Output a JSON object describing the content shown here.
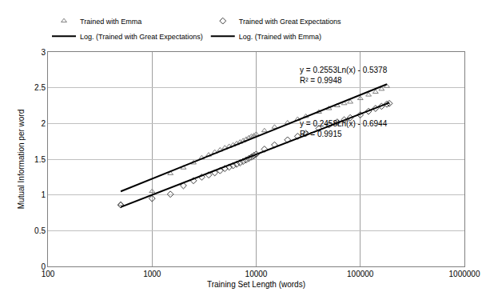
{
  "chart_data": {
    "type": "scatter",
    "log": "x",
    "grid": true,
    "legend": "top",
    "x_label": "Training Set Length (words)",
    "y_label": "Mutual Information per word",
    "xlim": [
      100,
      1000000
    ],
    "xticks": [
      100,
      1000,
      10000,
      100000,
      1000000
    ],
    "ylim": [
      0,
      3
    ],
    "yticks": [
      0,
      0.5,
      1,
      1.5,
      2,
      2.5,
      3
    ],
    "series": [
      {
        "name": "Trained with Emma",
        "type": "scatter",
        "marker": "triangle",
        "color": "#808080",
        "x": [
          500,
          1000,
          1500,
          2000,
          2500,
          3000,
          3500,
          4000,
          4500,
          5000,
          5500,
          6000,
          6500,
          7000,
          7500,
          8000,
          8500,
          9000,
          9500,
          10000,
          12000,
          15000,
          20000,
          25000,
          30000,
          40000,
          50000,
          60000,
          70000,
          80000,
          100000,
          120000,
          140000,
          160000,
          180000
        ],
        "values": [
          0.87,
          1.05,
          1.3,
          1.38,
          1.45,
          1.52,
          1.56,
          1.6,
          1.63,
          1.66,
          1.68,
          1.7,
          1.72,
          1.74,
          1.76,
          1.78,
          1.8,
          1.82,
          1.83,
          1.85,
          1.9,
          1.95,
          2.01,
          2.06,
          2.1,
          2.16,
          2.21,
          2.25,
          2.28,
          2.3,
          2.35,
          2.4,
          2.44,
          2.48,
          2.52
        ]
      },
      {
        "name": "Trained with Great Expectations",
        "type": "scatter",
        "marker": "diamond",
        "color": "#404040",
        "x": [
          500,
          1000,
          1500,
          2000,
          2500,
          3000,
          3500,
          4000,
          4500,
          5000,
          5500,
          6000,
          6500,
          7000,
          7500,
          8000,
          8500,
          9000,
          9500,
          10000,
          12000,
          15000,
          20000,
          25000,
          30000,
          40000,
          50000,
          60000,
          70000,
          80000,
          100000,
          120000,
          140000,
          160000,
          180000,
          190000
        ],
        "values": [
          0.86,
          0.95,
          1.01,
          1.13,
          1.2,
          1.25,
          1.28,
          1.31,
          1.34,
          1.37,
          1.39,
          1.41,
          1.43,
          1.45,
          1.47,
          1.49,
          1.51,
          1.53,
          1.55,
          1.57,
          1.64,
          1.7,
          1.77,
          1.82,
          1.86,
          1.93,
          1.98,
          2.02,
          2.05,
          2.08,
          2.12,
          2.17,
          2.21,
          2.24,
          2.27,
          2.28
        ]
      },
      {
        "name": "Log. (Trained with Great Expectations)",
        "type": "line",
        "line_style": "solid",
        "color": "#000000",
        "x": [
          500,
          190000
        ],
        "values": [
          0.83,
          2.29
        ]
      },
      {
        "name": "Log. (Trained with Emma)",
        "type": "line",
        "line_style": "solid",
        "color": "#000000",
        "x": [
          500,
          180000
        ],
        "values": [
          1.05,
          2.55
        ]
      }
    ],
    "annotations": [
      {
        "text": [
          "y = 0.2553Ln(x) - 0.5378",
          "R² = 0.9948"
        ],
        "x": 190000,
        "y": 2.67
      },
      {
        "text": [
          "y = 0.2458Ln(x) - 0.6944",
          "R² = 0.9915"
        ],
        "x": 190000,
        "y": 1.92
      }
    ]
  }
}
